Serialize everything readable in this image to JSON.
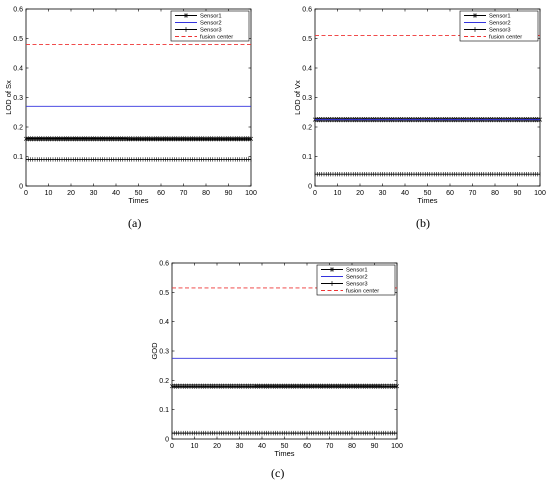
{
  "chart_data": [
    {
      "type": "line",
      "panel_label": "(a)",
      "xlabel": "Times",
      "ylabel": "LOD of Sx",
      "xlim": [
        0,
        100
      ],
      "ylim": [
        0,
        0.6
      ],
      "xticks": [
        0,
        10,
        20,
        30,
        40,
        50,
        60,
        70,
        80,
        90,
        100
      ],
      "yticks": [
        0,
        0.1,
        0.2,
        0.3,
        0.4,
        0.5,
        0.6
      ],
      "grid": false,
      "legend_position": "top-right",
      "series": [
        {
          "name": "Sensor1",
          "value": 0.16,
          "color": "#000000",
          "style": "solid",
          "marker": "asterisk"
        },
        {
          "name": "Sensor2",
          "value": 0.27,
          "color": "#3333dd",
          "style": "solid",
          "marker": "none"
        },
        {
          "name": "Sensor3",
          "value": 0.09,
          "color": "#000000",
          "style": "solid",
          "marker": "plus"
        },
        {
          "name": "fusion center",
          "value": 0.48,
          "color": "#ee3333",
          "style": "dashed",
          "marker": "none"
        }
      ]
    },
    {
      "type": "line",
      "panel_label": "(b)",
      "xlabel": "Times",
      "ylabel": "LOD of Vx",
      "xlim": [
        0,
        100
      ],
      "ylim": [
        0,
        0.6
      ],
      "xticks": [
        0,
        10,
        20,
        30,
        40,
        50,
        60,
        70,
        80,
        90,
        100
      ],
      "yticks": [
        0,
        0.1,
        0.2,
        0.3,
        0.4,
        0.5,
        0.6
      ],
      "grid": false,
      "legend_position": "top-right",
      "series": [
        {
          "name": "Sensor1",
          "value": 0.225,
          "color": "#000000",
          "style": "solid",
          "marker": "asterisk"
        },
        {
          "name": "Sensor2",
          "value": 0.225,
          "color": "#3333dd",
          "style": "solid",
          "marker": "none"
        },
        {
          "name": "Sensor3",
          "value": 0.04,
          "color": "#000000",
          "style": "solid",
          "marker": "plus"
        },
        {
          "name": "fusion center",
          "value": 0.51,
          "color": "#ee3333",
          "style": "dashed",
          "marker": "none"
        }
      ]
    },
    {
      "type": "line",
      "panel_label": "(c)",
      "xlabel": "Times",
      "ylabel": "GOD",
      "xlim": [
        0,
        100
      ],
      "ylim": [
        0,
        0.6
      ],
      "xticks": [
        0,
        10,
        20,
        30,
        40,
        50,
        60,
        70,
        80,
        90,
        100
      ],
      "yticks": [
        0,
        0.1,
        0.2,
        0.3,
        0.4,
        0.5,
        0.6
      ],
      "grid": false,
      "legend_position": "top-right",
      "series": [
        {
          "name": "Sensor1",
          "value": 0.18,
          "color": "#000000",
          "style": "solid",
          "marker": "asterisk"
        },
        {
          "name": "Sensor2",
          "value": 0.275,
          "color": "#3333dd",
          "style": "solid",
          "marker": "none"
        },
        {
          "name": "Sensor3",
          "value": 0.02,
          "color": "#000000",
          "style": "solid",
          "marker": "plus"
        },
        {
          "name": "fusion center",
          "value": 0.515,
          "color": "#ee3333",
          "style": "dashed",
          "marker": "none"
        }
      ]
    }
  ]
}
